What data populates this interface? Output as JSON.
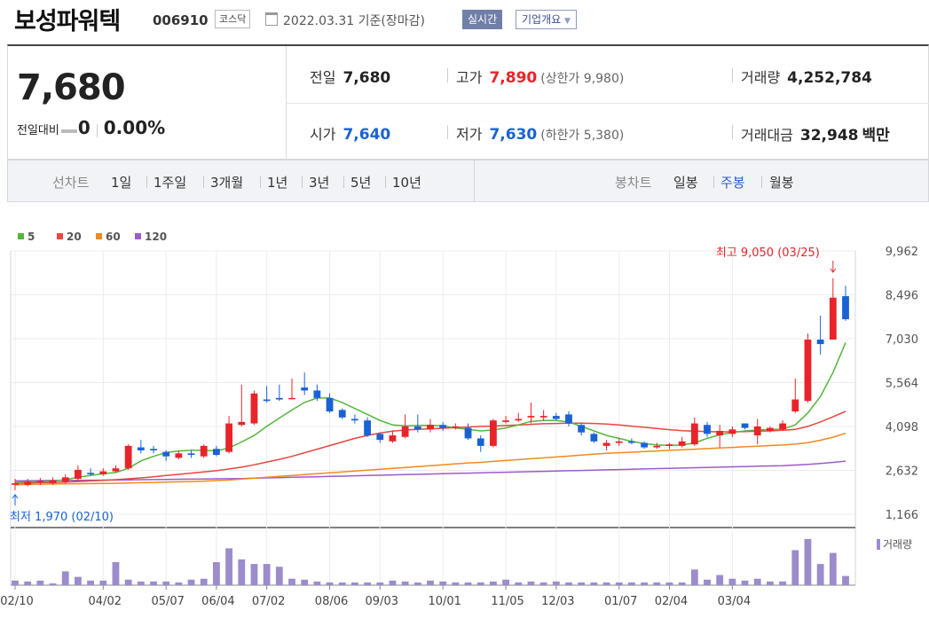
{
  "header": {
    "name": "보성파워텍",
    "code": "006910",
    "market": "코스닥",
    "date": "2022.03.31",
    "date_note": "기준(장마감)",
    "realtime": "실시간",
    "overview": "기업개요"
  },
  "price": {
    "current": "7,680",
    "change_label": "전일대비",
    "change": "0",
    "change_rate": "0.00%",
    "prev_label": "전일",
    "prev": "7,680",
    "open_label": "시가",
    "open": "7,640",
    "high_label": "고가",
    "high": "7,890",
    "high_limit": "(상한가 9,980)",
    "low_label": "저가",
    "low": "7,630",
    "low_limit": "(하한가 5,380)",
    "volume_label": "거래량",
    "volume": "4,252,784",
    "value_label": "거래대금",
    "value": "32,948",
    "value_unit": "백만"
  },
  "tabs": {
    "line_chart": "선차트",
    "periods": [
      "1일",
      "1주일",
      "3개월",
      "1년",
      "3년",
      "5년",
      "10년"
    ],
    "candle_chart": "봉차트",
    "candles": [
      "일봉",
      "주봉",
      "월봉"
    ],
    "active": "주봉"
  },
  "colors": {
    "up": "#e8242a",
    "down": "#1a62d4",
    "ma5": "#54b63c",
    "ma20": "#e8463f",
    "ma60": "#f08a1c",
    "ma120": "#9b5cc9",
    "volume": "#9b8ccc"
  },
  "chart_data": {
    "type": "candlestick",
    "legend": [
      {
        "name": "5",
        "color": "#54b63c"
      },
      {
        "name": "20",
        "color": "#e8463f"
      },
      {
        "name": "60",
        "color": "#f08a1c"
      },
      {
        "name": "120",
        "color": "#9b5cc9"
      }
    ],
    "y_ticks": [
      "9,962",
      "8,496",
      "7,030",
      "5,564",
      "4,098",
      "2,632",
      "1,166"
    ],
    "ylim": [
      1166,
      9962
    ],
    "x_ticks": [
      "02/10",
      "04/02",
      "05/07",
      "06/04",
      "07/02",
      "08/06",
      "09/03",
      "10/01",
      "11/05",
      "12/03",
      "01/07",
      "02/04",
      "03/04"
    ],
    "annotations": {
      "high": "최고 9,050 (03/25)",
      "low": "최저 1,970 (02/10)"
    },
    "volume_label": "거래량",
    "candles": [
      {
        "o": 2150,
        "c": 2200,
        "h": 2350,
        "l": 1970
      },
      {
        "o": 2150,
        "c": 2250,
        "h": 2350,
        "l": 2100
      },
      {
        "o": 2250,
        "c": 2280,
        "h": 2380,
        "l": 2150
      },
      {
        "o": 2200,
        "c": 2300,
        "h": 2400,
        "l": 2150
      },
      {
        "o": 2250,
        "c": 2400,
        "h": 2500,
        "l": 2200
      },
      {
        "o": 2350,
        "c": 2650,
        "h": 2800,
        "l": 2300
      },
      {
        "o": 2550,
        "c": 2500,
        "h": 2700,
        "l": 2450
      },
      {
        "o": 2500,
        "c": 2600,
        "h": 2700,
        "l": 2450
      },
      {
        "o": 2600,
        "c": 2700,
        "h": 2800,
        "l": 2550
      },
      {
        "o": 2700,
        "c": 3450,
        "h": 3500,
        "l": 2650
      },
      {
        "o": 3400,
        "c": 3300,
        "h": 3650,
        "l": 3200
      },
      {
        "o": 3350,
        "c": 3300,
        "h": 3450,
        "l": 3200
      },
      {
        "o": 3250,
        "c": 3100,
        "h": 3300,
        "l": 2950
      },
      {
        "o": 3050,
        "c": 3200,
        "h": 3300,
        "l": 3000
      },
      {
        "o": 3200,
        "c": 3150,
        "h": 3300,
        "l": 3050
      },
      {
        "o": 3100,
        "c": 3450,
        "h": 3500,
        "l": 3050
      },
      {
        "o": 3350,
        "c": 3150,
        "h": 3450,
        "l": 3100
      },
      {
        "o": 3250,
        "c": 4200,
        "h": 4450,
        "l": 3200
      },
      {
        "o": 4150,
        "c": 4250,
        "h": 5500,
        "l": 4100
      },
      {
        "o": 4200,
        "c": 5200,
        "h": 5300,
        "l": 4150
      },
      {
        "o": 5000,
        "c": 4950,
        "h": 5450,
        "l": 4900
      },
      {
        "o": 5050,
        "c": 5000,
        "h": 5500,
        "l": 4950
      },
      {
        "o": 5050,
        "c": 5050,
        "h": 5700,
        "l": 5000
      },
      {
        "o": 5400,
        "c": 5300,
        "h": 5900,
        "l": 5150
      },
      {
        "o": 5300,
        "c": 5050,
        "h": 5500,
        "l": 4950
      },
      {
        "o": 5050,
        "c": 4600,
        "h": 5200,
        "l": 4550
      },
      {
        "o": 4650,
        "c": 4400,
        "h": 4700,
        "l": 4350
      },
      {
        "o": 4350,
        "c": 4300,
        "h": 4500,
        "l": 4200
      },
      {
        "o": 4300,
        "c": 3800,
        "h": 4400,
        "l": 3750
      },
      {
        "o": 3850,
        "c": 3650,
        "h": 3900,
        "l": 3550
      },
      {
        "o": 3600,
        "c": 3800,
        "h": 3950,
        "l": 3550
      },
      {
        "o": 3750,
        "c": 4100,
        "h": 4500,
        "l": 3700
      },
      {
        "o": 4100,
        "c": 4000,
        "h": 4500,
        "l": 3900
      },
      {
        "o": 4000,
        "c": 4150,
        "h": 4350,
        "l": 3900
      },
      {
        "o": 4150,
        "c": 4050,
        "h": 4250,
        "l": 3950
      },
      {
        "o": 4050,
        "c": 4100,
        "h": 4200,
        "l": 4000
      },
      {
        "o": 4050,
        "c": 3700,
        "h": 4200,
        "l": 3650
      },
      {
        "o": 3700,
        "c": 3450,
        "h": 3800,
        "l": 3250
      },
      {
        "o": 3450,
        "c": 4300,
        "h": 4350,
        "l": 3400
      },
      {
        "o": 4250,
        "c": 4300,
        "h": 4450,
        "l": 4200
      },
      {
        "o": 4300,
        "c": 4350,
        "h": 4550,
        "l": 4250
      },
      {
        "o": 4400,
        "c": 4450,
        "h": 4900,
        "l": 4200
      },
      {
        "o": 4400,
        "c": 4450,
        "h": 4650,
        "l": 4300
      },
      {
        "o": 4450,
        "c": 4350,
        "h": 4550,
        "l": 4300
      },
      {
        "o": 4500,
        "c": 4200,
        "h": 4600,
        "l": 4100
      },
      {
        "o": 4150,
        "c": 3900,
        "h": 4200,
        "l": 3800
      },
      {
        "o": 3850,
        "c": 3600,
        "h": 3900,
        "l": 3550
      },
      {
        "o": 3450,
        "c": 3550,
        "h": 3650,
        "l": 3300
      },
      {
        "o": 3550,
        "c": 3600,
        "h": 3700,
        "l": 3450
      },
      {
        "o": 3600,
        "c": 3550,
        "h": 3700,
        "l": 3500
      },
      {
        "o": 3550,
        "c": 3400,
        "h": 3600,
        "l": 3350
      },
      {
        "o": 3400,
        "c": 3450,
        "h": 3550,
        "l": 3350
      },
      {
        "o": 3450,
        "c": 3500,
        "h": 3550,
        "l": 3350
      },
      {
        "o": 3450,
        "c": 3600,
        "h": 3750,
        "l": 3400
      },
      {
        "o": 3500,
        "c": 4200,
        "h": 4400,
        "l": 3450
      },
      {
        "o": 4150,
        "c": 3850,
        "h": 4250,
        "l": 3750
      },
      {
        "o": 3800,
        "c": 3950,
        "h": 4150,
        "l": 3400
      },
      {
        "o": 3850,
        "c": 4000,
        "h": 4100,
        "l": 3750
      },
      {
        "o": 4200,
        "c": 4050,
        "h": 4200,
        "l": 4000
      },
      {
        "o": 3800,
        "c": 4100,
        "h": 4350,
        "l": 3500
      },
      {
        "o": 3950,
        "c": 4050,
        "h": 4100,
        "l": 3900
      },
      {
        "o": 4000,
        "c": 4200,
        "h": 4300,
        "l": 3950
      },
      {
        "o": 4600,
        "c": 5000,
        "h": 5700,
        "l": 4550
      },
      {
        "o": 4950,
        "c": 7000,
        "h": 7200,
        "l": 4900
      },
      {
        "o": 7000,
        "c": 6850,
        "h": 7800,
        "l": 6500
      },
      {
        "o": 7000,
        "c": 8400,
        "h": 9050,
        "l": 7000
      },
      {
        "o": 8450,
        "c": 7680,
        "h": 8800,
        "l": 7630
      }
    ],
    "ma": {
      "5": [
        2230,
        2245,
        2260,
        2275,
        2320,
        2400,
        2460,
        2520,
        2560,
        2700,
        2950,
        3100,
        3230,
        3280,
        3300,
        3300,
        3280,
        3380,
        3580,
        3800,
        4100,
        4380,
        4650,
        4900,
        5050,
        5050,
        4900,
        4700,
        4500,
        4300,
        4150,
        4120,
        4130,
        4140,
        4120,
        4050,
        4000,
        3950,
        3980,
        4050,
        4150,
        4270,
        4300,
        4300,
        4250,
        4100,
        3950,
        3800,
        3700,
        3600,
        3530,
        3480,
        3470,
        3480,
        3550,
        3700,
        3820,
        3900,
        3950,
        3980,
        4000,
        4010,
        4150,
        4550,
        5100,
        5900,
        6900
      ],
      "20": [
        2200,
        2210,
        2220,
        2230,
        2240,
        2260,
        2280,
        2300,
        2320,
        2350,
        2380,
        2420,
        2460,
        2500,
        2540,
        2580,
        2620,
        2680,
        2740,
        2820,
        2910,
        3000,
        3100,
        3220,
        3340,
        3460,
        3580,
        3700,
        3800,
        3880,
        3940,
        3980,
        4000,
        4020,
        4040,
        4060,
        4080,
        4100,
        4110,
        4130,
        4150,
        4170,
        4190,
        4200,
        4210,
        4210,
        4200,
        4180,
        4150,
        4110,
        4070,
        4030,
        3990,
        3960,
        3940,
        3930,
        3920,
        3920,
        3930,
        3940,
        3950,
        3970,
        4000,
        4100,
        4250,
        4420,
        4600
      ],
      "60": [
        2150,
        2160,
        2170,
        2175,
        2180,
        2185,
        2190,
        2195,
        2200,
        2210,
        2220,
        2230,
        2240,
        2250,
        2260,
        2275,
        2290,
        2310,
        2340,
        2370,
        2400,
        2430,
        2460,
        2490,
        2520,
        2550,
        2580,
        2610,
        2640,
        2670,
        2700,
        2730,
        2760,
        2790,
        2820,
        2850,
        2880,
        2900,
        2930,
        2960,
        2990,
        3020,
        3050,
        3080,
        3110,
        3140,
        3170,
        3200,
        3220,
        3240,
        3260,
        3280,
        3300,
        3320,
        3340,
        3360,
        3380,
        3400,
        3420,
        3440,
        3460,
        3480,
        3510,
        3560,
        3640,
        3740,
        3870
      ],
      "120": [
        2280,
        2285,
        2290,
        2293,
        2296,
        2299,
        2302,
        2305,
        2310,
        2315,
        2320,
        2325,
        2330,
        2335,
        2340,
        2345,
        2350,
        2355,
        2360,
        2370,
        2380,
        2390,
        2400,
        2410,
        2420,
        2430,
        2440,
        2450,
        2460,
        2470,
        2480,
        2490,
        2500,
        2510,
        2520,
        2530,
        2540,
        2550,
        2560,
        2570,
        2580,
        2590,
        2600,
        2610,
        2620,
        2630,
        2640,
        2650,
        2660,
        2670,
        2680,
        2690,
        2700,
        2710,
        2720,
        2730,
        2740,
        2750,
        2760,
        2770,
        2780,
        2790,
        2810,
        2830,
        2860,
        2900,
        2940
      ]
    },
    "volume": [
      5,
      4,
      5,
      2,
      15,
      9,
      5,
      5,
      25,
      6,
      4,
      4,
      4,
      3,
      6,
      7,
      25,
      40,
      28,
      23,
      23,
      20,
      7,
      6,
      4,
      3,
      3,
      3,
      3,
      3,
      5,
      4,
      3,
      5,
      4,
      3,
      3,
      3,
      4,
      6,
      3,
      4,
      3,
      4,
      3,
      3,
      3,
      3,
      3,
      3,
      3,
      3,
      3,
      3,
      17,
      6,
      11,
      7,
      5,
      7,
      4,
      4,
      38,
      50,
      23,
      35,
      10
    ]
  }
}
